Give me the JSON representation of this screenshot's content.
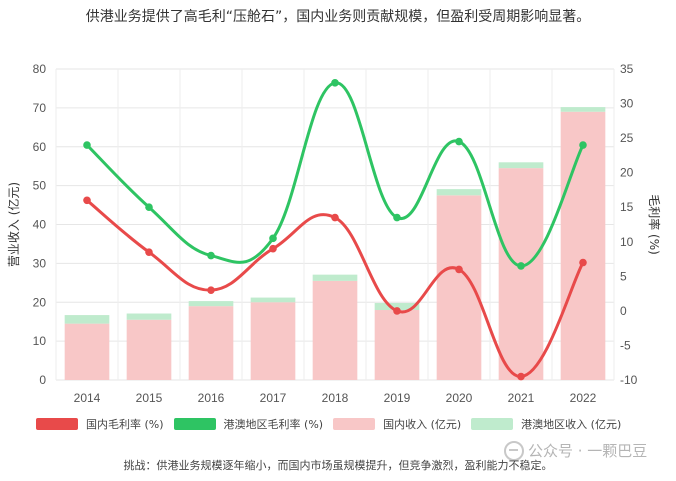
{
  "title": "供港业务提供了高毛利“压舱石”，国内业务则贡献规模，但盈利受周期影响显著。",
  "caption": "挑战：供港业务规模逐年缩小，而国内市场虽规模提升，但竞争激烈，盈利能力不稳定。",
  "watermark": "公众号 · 一颗巴豆",
  "colors": {
    "domestic_margin": "#e84a4a",
    "hk_margin": "#2ec463",
    "domestic_revenue": "#f8c7c7",
    "hk_revenue": "#bfebcd"
  },
  "legend": [
    {
      "label": "国内毛利率 (%)",
      "color": "#e84a4a"
    },
    {
      "label": "港澳地区毛利率 (%)",
      "color": "#2ec463"
    },
    {
      "label": "国内收入 (亿元)",
      "color": "#f8c7c7"
    },
    {
      "label": "港澳地区收入 (亿元)",
      "color": "#bfebcd"
    }
  ],
  "chart_data": {
    "type": "bar",
    "categories": [
      "2014",
      "2015",
      "2016",
      "2017",
      "2018",
      "2019",
      "2020",
      "2021",
      "2022"
    ],
    "ylabel": "营业收入 (亿元)",
    "y2label": "毛利率 (%)",
    "ylim": [
      0,
      80
    ],
    "y2lim": [
      -10,
      35
    ],
    "yticks": [
      "0",
      "10",
      "20",
      "30",
      "40",
      "50",
      "60",
      "70",
      "80"
    ],
    "y2ticks": [
      "-10",
      "-5",
      "0",
      "5",
      "10",
      "15",
      "20",
      "25",
      "30",
      "35"
    ],
    "grid": true,
    "stacked": true,
    "series": [
      {
        "name": "国内收入 (亿元)",
        "type": "bar",
        "axis": "left",
        "values": [
          14.5,
          15.5,
          19,
          20,
          25.5,
          18,
          47.5,
          54.5,
          69
        ]
      },
      {
        "name": "港澳地区收入 (亿元)",
        "type": "bar",
        "axis": "left",
        "values": [
          2.2,
          1.6,
          1.3,
          1.2,
          1.6,
          1.8,
          1.6,
          1.5,
          1.2
        ]
      },
      {
        "name": "国内毛利率 (%)",
        "type": "line",
        "axis": "right",
        "values": [
          16,
          8.5,
          3,
          9,
          13.5,
          0,
          6,
          -9.5,
          7
        ]
      },
      {
        "name": "港澳地区毛利率 (%)",
        "type": "line",
        "axis": "right",
        "values": [
          24,
          15,
          8,
          10.5,
          33,
          13.5,
          24.5,
          6.5,
          24
        ]
      }
    ]
  }
}
